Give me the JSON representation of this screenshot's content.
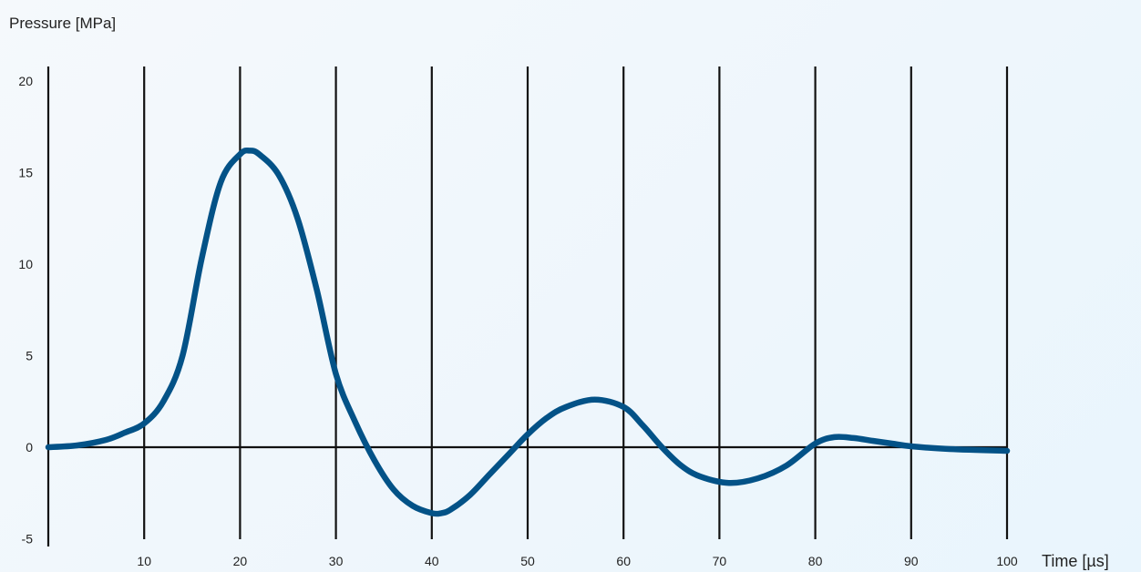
{
  "chart_data": {
    "type": "line",
    "ylabel": "Pressure [MPa]",
    "xlabel": "Time [µs]",
    "xlim": [
      0,
      100
    ],
    "ylim": [
      -5,
      20
    ],
    "x_ticks": [
      10,
      20,
      30,
      40,
      50,
      60,
      70,
      80,
      90,
      100
    ],
    "y_ticks": [
      20,
      15,
      10,
      5,
      0,
      -5
    ],
    "grid": "vertical",
    "line_color": "#035287",
    "series": [
      {
        "x": [
          0,
          3,
          6,
          8,
          10,
          12,
          14,
          16,
          18,
          20,
          21,
          22,
          24,
          26,
          28,
          30,
          32,
          34,
          36,
          38,
          40,
          41,
          42,
          44,
          46,
          48,
          50,
          52,
          54,
          57,
          60,
          62,
          64,
          66,
          68,
          71,
          74,
          77,
          80,
          82,
          84,
          86,
          88,
          90,
          94,
          100
        ],
        "y": [
          0,
          0.1,
          0.4,
          0.8,
          1.3,
          2.5,
          5,
          10.3,
          14.5,
          16,
          16.2,
          16,
          14.9,
          12.5,
          8.6,
          4,
          1.4,
          -0.7,
          -2.3,
          -3.2,
          -3.6,
          -3.6,
          -3.4,
          -2.6,
          -1.5,
          -0.4,
          0.7,
          1.6,
          2.2,
          2.6,
          2.2,
          1.2,
          0,
          -1,
          -1.6,
          -1.95,
          -1.7,
          -1,
          0.2,
          0.55,
          0.5,
          0.35,
          0.2,
          0.05,
          -0.1,
          -0.2
        ]
      }
    ]
  }
}
